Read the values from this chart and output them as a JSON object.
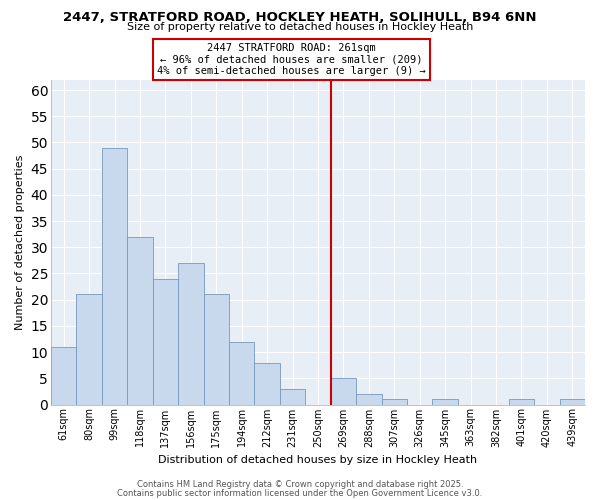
{
  "title1": "2447, STRATFORD ROAD, HOCKLEY HEATH, SOLIHULL, B94 6NN",
  "title2": "Size of property relative to detached houses in Hockley Heath",
  "xlabel": "Distribution of detached houses by size in Hockley Heath",
  "ylabel": "Number of detached properties",
  "bar_labels": [
    "61sqm",
    "80sqm",
    "99sqm",
    "118sqm",
    "137sqm",
    "156sqm",
    "175sqm",
    "194sqm",
    "212sqm",
    "231sqm",
    "250sqm",
    "269sqm",
    "288sqm",
    "307sqm",
    "326sqm",
    "345sqm",
    "363sqm",
    "382sqm",
    "401sqm",
    "420sqm",
    "439sqm"
  ],
  "bar_values": [
    11,
    21,
    49,
    32,
    24,
    27,
    21,
    12,
    8,
    3,
    0,
    5,
    2,
    1,
    0,
    1,
    0,
    0,
    1,
    0,
    1
  ],
  "bar_color": "#c8d8ed",
  "bar_edge_color": "#7799bb",
  "ylim": [
    0,
    62
  ],
  "yticks": [
    0,
    5,
    10,
    15,
    20,
    25,
    30,
    35,
    40,
    45,
    50,
    55,
    60
  ],
  "vline_x": 10.5,
  "vline_color": "#cc0000",
  "annotation_title": "2447 STRATFORD ROAD: 261sqm",
  "annotation_line1": "← 96% of detached houses are smaller (209)",
  "annotation_line2": "4% of semi-detached houses are larger (9) →",
  "background_color": "#ffffff",
  "plot_bg_color": "#e8eef5",
  "grid_color": "#ffffff",
  "footer1": "Contains HM Land Registry data © Crown copyright and database right 2025.",
  "footer2": "Contains public sector information licensed under the Open Government Licence v3.0."
}
